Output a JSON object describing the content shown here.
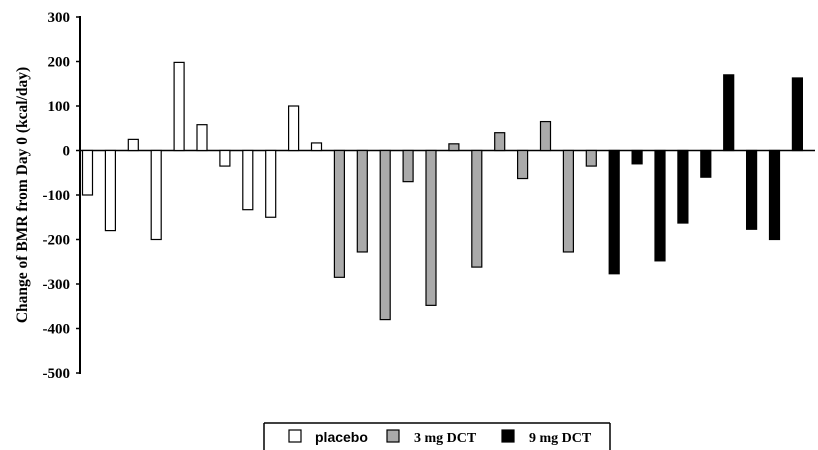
{
  "chart_data": {
    "type": "bar",
    "ylabel": "Change of BMR from Day 0 (kcal/day)",
    "ylim": [
      -500,
      300
    ],
    "yticks": [
      300,
      200,
      100,
      0,
      -100,
      -200,
      -300,
      -400,
      -500
    ],
    "ytick_labels": [
      "300",
      "200",
      "100",
      "0",
      "-100",
      "-200",
      "-300",
      "-400",
      "-500"
    ],
    "grid": false,
    "legend_position": "bottom-center",
    "series": [
      {
        "name": "placebo",
        "color": "#ffffff",
        "values": [
          -100,
          -180,
          25,
          -200,
          198,
          58,
          -35,
          -133,
          -150,
          100,
          17
        ]
      },
      {
        "name": "3 mg DCT",
        "color": "#aaaaaa",
        "values": [
          -285,
          -228,
          -380,
          -70,
          -348,
          15,
          -262,
          40,
          -63,
          65,
          -228,
          -35
        ]
      },
      {
        "name": "9 mg DCT",
        "color": "#000000",
        "values": [
          -277,
          -30,
          -248,
          -163,
          -60,
          170,
          -177,
          -200,
          163
        ]
      }
    ]
  }
}
